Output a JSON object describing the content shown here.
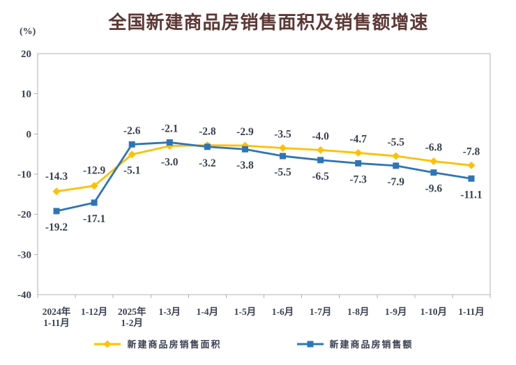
{
  "chart_data": {
    "type": "line",
    "title": "全国新建商品房销售面积及销售额增速",
    "unit_label": "(%)",
    "categories": [
      "2024年\n1-11月",
      "1-12月",
      "2025年\n1-2月",
      "1-3月",
      "1-4月",
      "1-5月",
      "1-6月",
      "1-7月",
      "1-8月",
      "1-9月",
      "1-10月",
      "1-11月"
    ],
    "series": [
      {
        "name": "新建商品房销售面积",
        "marker": "diamond",
        "color": "#FFC000",
        "values": [
          -14.3,
          -12.9,
          -5.1,
          -3.0,
          -2.8,
          -2.9,
          -3.5,
          -4.0,
          -4.7,
          -5.5,
          -6.8,
          -7.8
        ]
      },
      {
        "name": "新建商品房销售额",
        "marker": "square",
        "color": "#2E75B6",
        "values": [
          -19.2,
          -17.1,
          -2.6,
          -2.1,
          -3.2,
          -3.8,
          -5.5,
          -6.5,
          -7.3,
          -7.9,
          -9.6,
          -11.1
        ]
      }
    ],
    "ylim": [
      -40,
      20
    ],
    "yticks": [
      20,
      10,
      0,
      -10,
      -20,
      -30,
      -40
    ],
    "grid": false,
    "data_labels": true,
    "legend_position": "bottom"
  },
  "style": {
    "title_color": "#5d3835",
    "label_color": "#3a4050",
    "axis_color": "#b0b0b0"
  }
}
